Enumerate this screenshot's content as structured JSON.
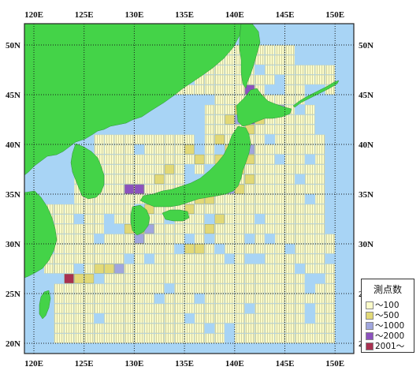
{
  "map": {
    "x_ticks": [
      "120E",
      "125E",
      "130E",
      "135E",
      "140E",
      "145E",
      "150E"
    ],
    "y_ticks": [
      "50N",
      "45N",
      "40N",
      "35N",
      "30N",
      "25N",
      "20N"
    ],
    "colors": {
      "sea": "#a8d4f5",
      "land": "#44d348",
      "grid": "#1a1a1a"
    }
  },
  "legend": {
    "title": "測点数",
    "items": [
      {
        "label": "～100",
        "color": "#fbfbc9"
      },
      {
        "label": "～500",
        "color": "#e2d977"
      },
      {
        "label": "～1000",
        "color": "#a0a6de"
      },
      {
        "label": "～2000",
        "color": "#8c52be"
      },
      {
        "label": "2001～",
        "color": "#a83050"
      }
    ]
  }
}
